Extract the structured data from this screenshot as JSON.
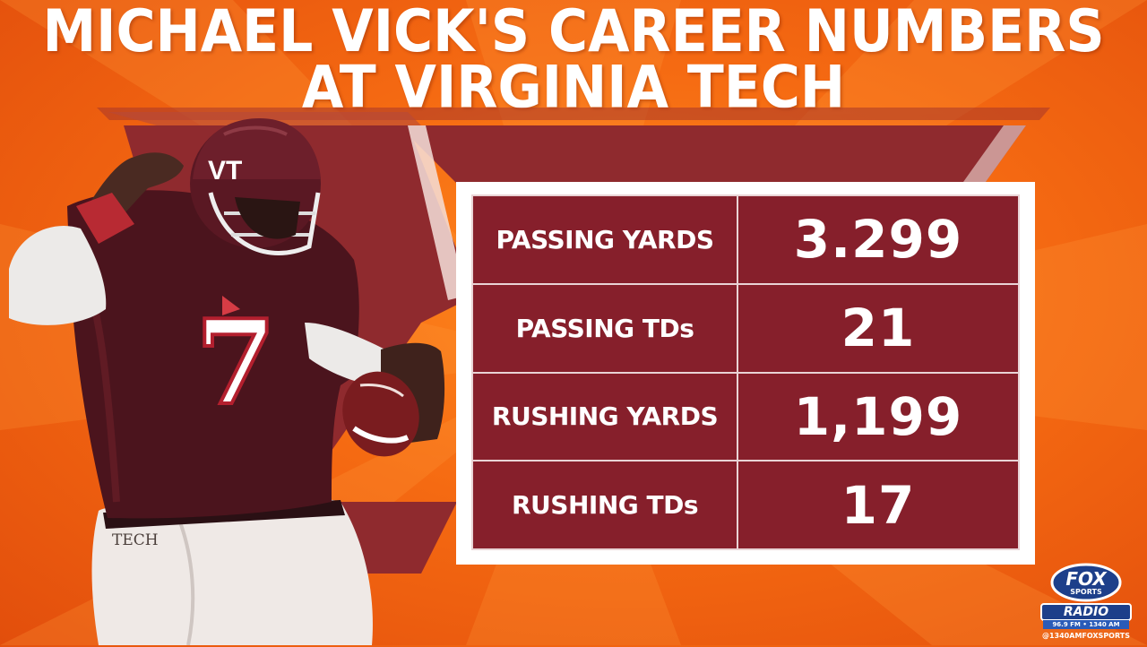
{
  "title": {
    "line1": "MICHAEL VICK'S CAREER NUMBERS",
    "line2": "AT VIRGINIA TECH"
  },
  "player": {
    "helmet_text": "VT",
    "jersey_number": "7",
    "pants_text": "TECH"
  },
  "stats": [
    {
      "label": "PASSING YARDS",
      "value": "3.299"
    },
    {
      "label": "PASSING TDs",
      "value": "21"
    },
    {
      "label": "RUSHING YARDS",
      "value": "1,199"
    },
    {
      "label": "RUSHING TDs",
      "value": "17"
    }
  ],
  "badge": {
    "fox": "FOX",
    "sports": "SPORTS",
    "radio": "RADIO",
    "freq": "96.9 FM • 1340 AM",
    "handle": "@1340AMFOXSPORTS"
  },
  "colors": {
    "background": "#f56a12",
    "maroon": "#861f2b",
    "white": "#ffffff"
  }
}
